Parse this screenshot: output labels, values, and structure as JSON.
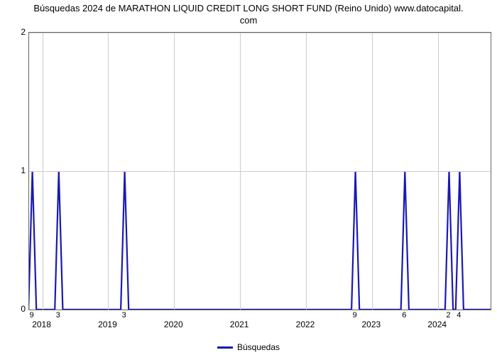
{
  "chart": {
    "type": "line",
    "title_line1": "Búsquedas 2024 de MARATHON LIQUID CREDIT LONG SHORT FUND (Reino Unido) www.datocapital.",
    "title_line2": "com",
    "title_fontsize": 13,
    "background_color": "#ffffff",
    "grid_color": "#cccccc",
    "axis_color": "#666666",
    "line_color": "#1919b3",
    "line_width": 2.2,
    "ylim": [
      0,
      2
    ],
    "yticks": [
      0,
      1,
      2
    ],
    "x_axis": {
      "start": 2017.8,
      "end": 2024.8,
      "year_ticks": [
        2018,
        2019,
        2020,
        2021,
        2022,
        2023,
        2024
      ]
    },
    "legend_label": "Búsquedas",
    "peaks": [
      {
        "x": 2017.85,
        "v": 1,
        "label": "9"
      },
      {
        "x": 2018.25,
        "v": 1,
        "label": "3"
      },
      {
        "x": 2019.25,
        "v": 1,
        "label": "3"
      },
      {
        "x": 2022.75,
        "v": 1,
        "label": "9"
      },
      {
        "x": 2023.5,
        "v": 1,
        "label": "6"
      },
      {
        "x": 2024.17,
        "v": 1,
        "label": "2"
      },
      {
        "x": 2024.33,
        "v": 1,
        "label": "4"
      }
    ],
    "peak_half_width": 0.06
  }
}
